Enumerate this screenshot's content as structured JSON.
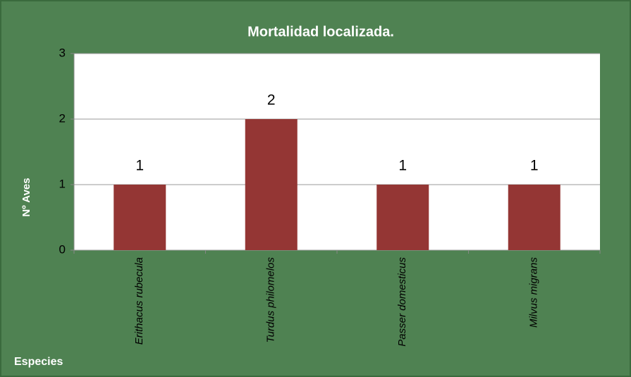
{
  "chart_data": {
    "type": "bar",
    "title": "Mortalidad localizada.",
    "categories": [
      "Erithacus rubecula",
      "Turdus philomelos",
      "Passer domesticus",
      "Milvus migrans"
    ],
    "values": [
      1,
      2,
      1,
      1
    ],
    "color": "#943634",
    "ylabel": "Nº Aves",
    "xlabel": "Especies",
    "ylim": [
      0,
      3
    ],
    "yticks": [
      0,
      1,
      2,
      3
    ],
    "grid": true,
    "data_labels": true
  }
}
